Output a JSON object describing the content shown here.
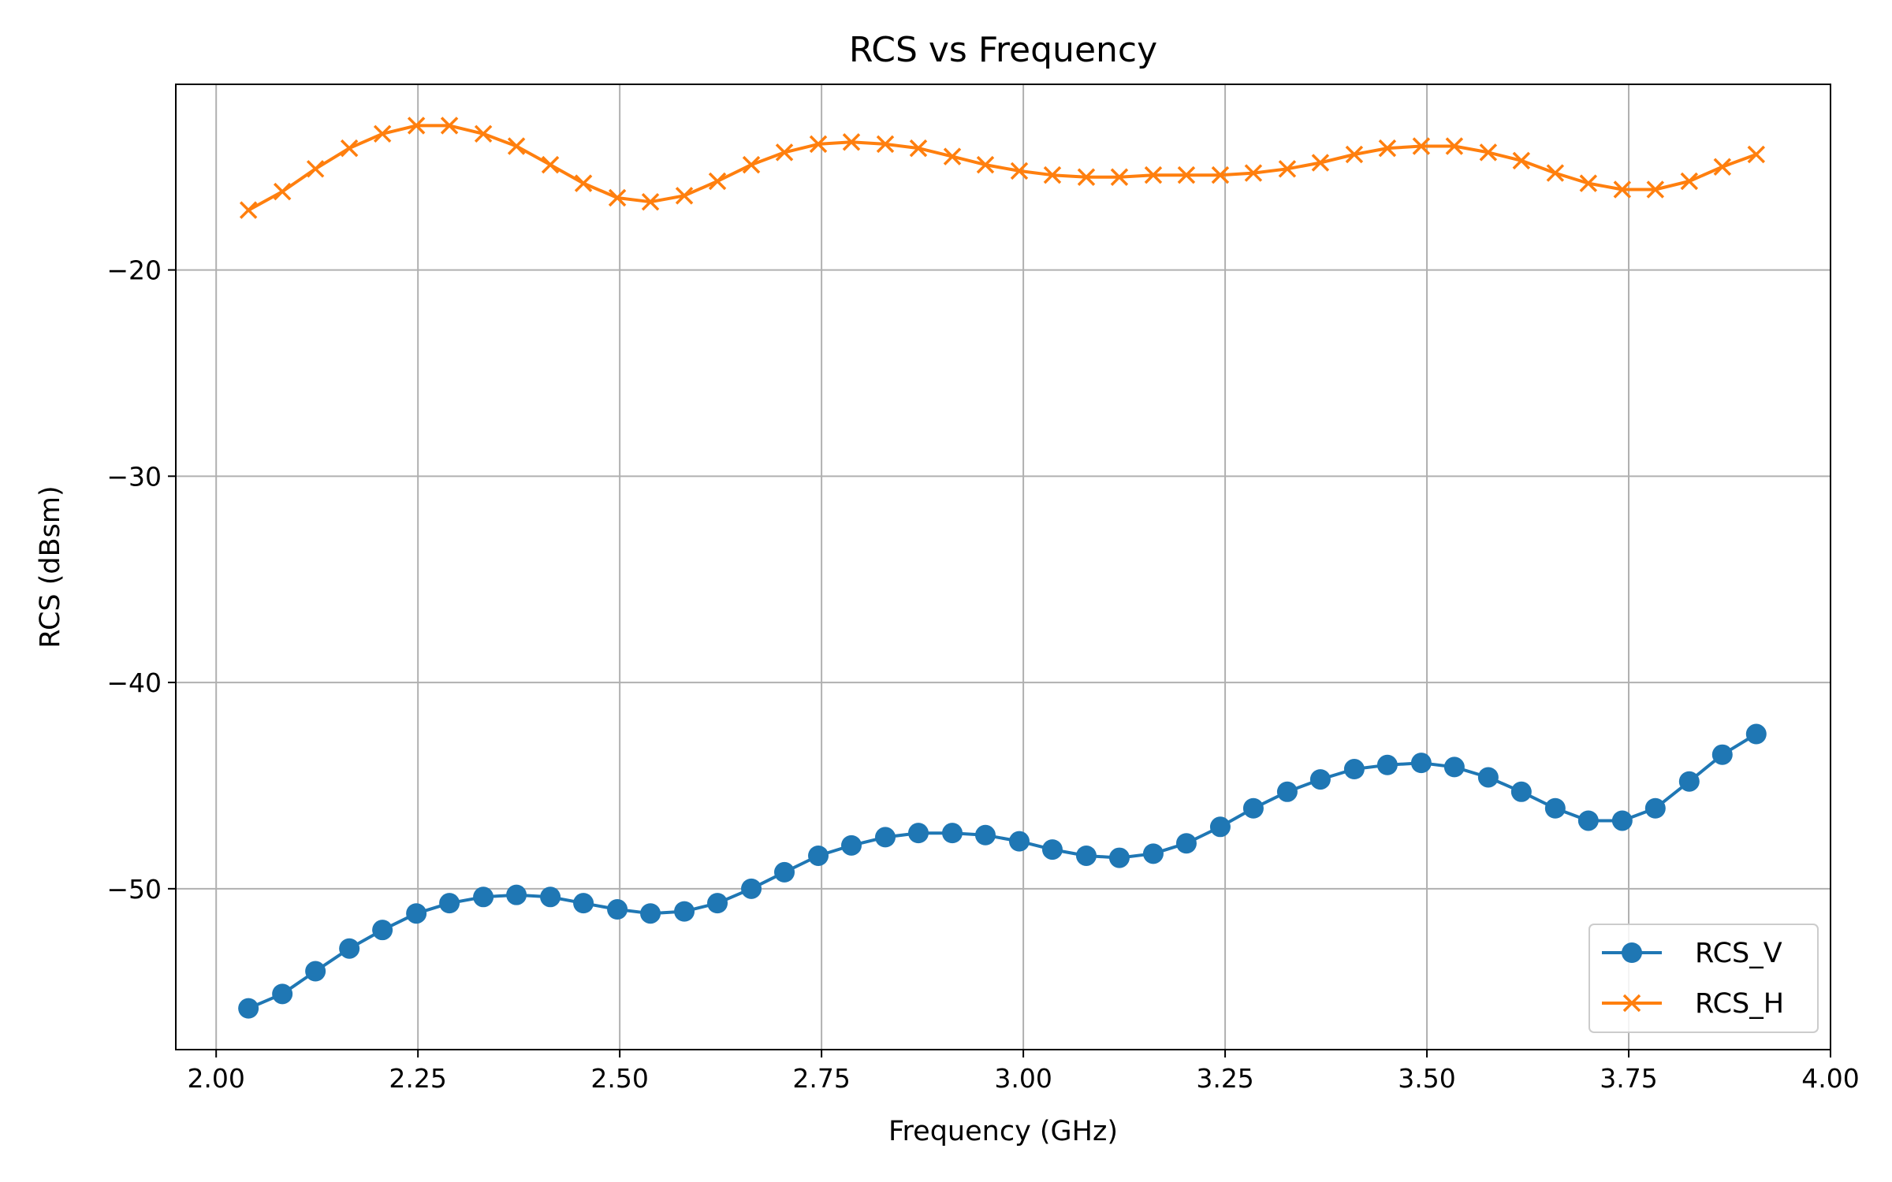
{
  "chart_data": {
    "type": "line",
    "title": "RCS vs Frequency",
    "xlabel": "Frequency (GHz)",
    "ylabel": "RCS (dBsm)",
    "xlim": [
      1.95,
      4.0
    ],
    "ylim": [
      -57.8,
      -11.0
    ],
    "xticks": [
      2.0,
      2.25,
      2.5,
      2.75,
      3.0,
      3.25,
      3.5,
      3.75,
      4.0
    ],
    "xtick_labels": [
      "2.00",
      "2.25",
      "2.50",
      "2.75",
      "3.00",
      "3.25",
      "3.50",
      "3.75",
      "4.00"
    ],
    "yticks": [
      -50,
      -40,
      -30,
      -20
    ],
    "ytick_labels": [
      "−50",
      "−40",
      "−30",
      "−20"
    ],
    "grid": true,
    "legend": "lower-right",
    "x": [
      2.04,
      2.082,
      2.123,
      2.165,
      2.206,
      2.248,
      2.289,
      2.331,
      2.372,
      2.414,
      2.455,
      2.497,
      2.538,
      2.58,
      2.621,
      2.663,
      2.704,
      2.746,
      2.787,
      2.829,
      2.87,
      2.912,
      2.953,
      2.995,
      3.036,
      3.078,
      3.119,
      3.161,
      3.202,
      3.244,
      3.285,
      3.327,
      3.368,
      3.41,
      3.451,
      3.493,
      3.534,
      3.576,
      3.617,
      3.659,
      3.7,
      3.742,
      3.783,
      3.825,
      3.866,
      3.908
    ],
    "series": [
      {
        "name": "RCS_V",
        "color": "#1f77b4",
        "marker": "circle",
        "values": [
          -55.8,
          -55.1,
          -54.0,
          -52.9,
          -52.0,
          -51.2,
          -50.7,
          -50.4,
          -50.3,
          -50.4,
          -50.7,
          -51.0,
          -51.2,
          -51.1,
          -50.7,
          -50.0,
          -49.2,
          -48.4,
          -47.9,
          -47.5,
          -47.3,
          -47.3,
          -47.4,
          -47.7,
          -48.1,
          -48.4,
          -48.5,
          -48.3,
          -47.8,
          -47.0,
          -46.1,
          -45.3,
          -44.7,
          -44.2,
          -44.0,
          -43.9,
          -44.1,
          -44.6,
          -45.3,
          -46.1,
          -46.7,
          -46.7,
          -46.1,
          -44.8,
          -43.5,
          -42.5
        ]
      },
      {
        "name": "RCS_H",
        "color": "#ff7f0e",
        "marker": "x",
        "values": [
          -17.1,
          -16.2,
          -15.1,
          -14.1,
          -13.4,
          -13.0,
          -13.0,
          -13.4,
          -14.0,
          -14.9,
          -15.8,
          -16.5,
          -16.7,
          -16.4,
          -15.7,
          -14.9,
          -14.3,
          -13.9,
          -13.8,
          -13.9,
          -14.1,
          -14.5,
          -14.9,
          -15.2,
          -15.4,
          -15.5,
          -15.5,
          -15.4,
          -15.4,
          -15.4,
          -15.3,
          -15.1,
          -14.8,
          -14.4,
          -14.1,
          -14.0,
          -14.0,
          -14.3,
          -14.7,
          -15.3,
          -15.8,
          -16.1,
          -16.1,
          -15.7,
          -15.0,
          -14.4
        ]
      }
    ]
  }
}
